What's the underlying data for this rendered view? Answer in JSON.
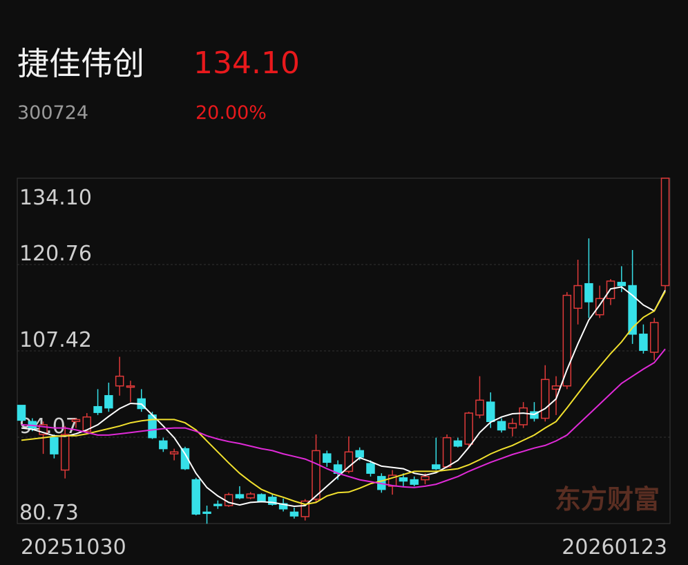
{
  "header": {
    "name": "捷佳伟创",
    "price": "134.10",
    "code": "300724",
    "change": "20.00%"
  },
  "watermark": "东方财富",
  "chart_data": {
    "type": "candlestick",
    "x": [
      "20251030",
      null,
      null,
      null,
      null,
      null,
      null,
      null,
      null,
      null,
      null,
      null,
      null,
      null,
      null,
      null,
      null,
      null,
      null,
      null,
      null,
      null,
      null,
      null,
      null,
      null,
      null,
      null,
      null,
      null,
      null,
      null,
      null,
      null,
      null,
      null,
      null,
      null,
      null,
      null,
      null,
      null,
      null,
      null,
      null,
      null,
      null,
      null,
      null,
      null,
      null,
      null,
      null,
      null,
      null,
      null,
      null,
      null,
      null,
      "20260123"
    ],
    "open": [
      99.0,
      96.5,
      94.5,
      94.0,
      89.0,
      96.5,
      95.0,
      98.8,
      100.5,
      102.0,
      101.8,
      100.0,
      97.5,
      93.5,
      91.5,
      92.3,
      87.5,
      82.5,
      83.7,
      83.5,
      85.2,
      84.7,
      85.2,
      84.8,
      83.8,
      82.5,
      81.8,
      84.5,
      91.5,
      89.8,
      88.8,
      92.0,
      90.0,
      88.0,
      86.5,
      87.8,
      87.5,
      87.5,
      89.8,
      89.5,
      93.5,
      93.0,
      97.5,
      99.5,
      96.5,
      95.5,
      96.0,
      98.0,
      97.0,
      101.5,
      102.0,
      114.0,
      117.8,
      113.0,
      115.5,
      118.0,
      117.5,
      110.0,
      107.2,
      117.5
    ],
    "high": [
      99.0,
      97.0,
      96.5,
      94.5,
      95.8,
      97.0,
      97.8,
      101.5,
      102.5,
      106.5,
      102.8,
      101.5,
      98.0,
      94.0,
      92.3,
      92.6,
      87.8,
      83.5,
      84.3,
      85.5,
      86.5,
      85.6,
      85.4,
      85.3,
      84.6,
      83.2,
      84.5,
      94.5,
      92.0,
      90.5,
      94.2,
      92.5,
      90.5,
      88.5,
      89.0,
      88.5,
      88.0,
      88.5,
      94.0,
      94.5,
      94.0,
      98.0,
      103.5,
      101.0,
      97.0,
      97.0,
      99.5,
      99.5,
      105.2,
      103.5,
      116.5,
      121.5,
      124.8,
      117.5,
      118.5,
      120.5,
      123.0,
      111.5,
      112.5,
      134.1
    ],
    "low": [
      96.5,
      95.0,
      91.5,
      90.8,
      87.7,
      95.5,
      94.5,
      97.5,
      98.0,
      100.5,
      99.5,
      98.0,
      93.8,
      91.8,
      90.5,
      89.0,
      82.0,
      80.7,
      83.0,
      83.3,
      84.5,
      84.5,
      84.0,
      83.5,
      82.6,
      81.5,
      81.2,
      84.0,
      89.5,
      87.5,
      88.5,
      90.5,
      88.0,
      85.5,
      85.2,
      86.5,
      86.5,
      86.8,
      89.0,
      89.3,
      92.5,
      92.5,
      97.0,
      95.5,
      94.8,
      94.2,
      95.5,
      96.5,
      96.5,
      97.5,
      101.5,
      111.5,
      112.5,
      112.5,
      114.5,
      116.5,
      108.5,
      107.0,
      106.0,
      116.8
    ],
    "close": [
      96.7,
      95.5,
      96.0,
      91.5,
      94.5,
      96.8,
      97.2,
      97.9,
      98.6,
      103.5,
      102.0,
      98.5,
      94.0,
      92.3,
      91.8,
      89.2,
      82.2,
      82.3,
      83.5,
      85.2,
      84.7,
      85.3,
      84.2,
      83.7,
      83.0,
      81.9,
      84.2,
      92.0,
      90.2,
      88.5,
      91.8,
      91.0,
      88.5,
      86.0,
      88.2,
      87.3,
      86.8,
      88.0,
      89.2,
      94.0,
      92.7,
      97.8,
      99.8,
      96.5,
      95.2,
      96.2,
      98.6,
      97.0,
      103.0,
      102.0,
      116.0,
      117.5,
      115.0,
      115.5,
      118.2,
      117.5,
      110.0,
      107.5,
      111.8,
      134.1
    ],
    "up_color": "#e03a3a",
    "down_color": "#36e0e8",
    "lines": [
      {
        "color": "#ffffff",
        "values": [
          95.5,
          95.3,
          94.8,
          94.3,
          94.2,
          94.6,
          95.2,
          96.0,
          97.3,
          98.5,
          99.3,
          99.2,
          97.5,
          95.8,
          94.0,
          91.5,
          88.5,
          86.3,
          85.0,
          84.0,
          83.6,
          84.0,
          84.1,
          84.0,
          83.7,
          83.4,
          83.5,
          85.0,
          86.5,
          88.0,
          89.5,
          90.9,
          90.3,
          89.6,
          89.4,
          89.2,
          88.5,
          88.2,
          88.6,
          89.5,
          90.5,
          92.5,
          94.8,
          96.4,
          97.2,
          97.7,
          97.8,
          97.6,
          98.5,
          100.0,
          104.5,
          108.5,
          112.2,
          114.5,
          117.0,
          117.3,
          116.0,
          114.5,
          113.6,
          116.8
        ]
      },
      {
        "color": "#f2e12e",
        "values": [
          93.6,
          93.8,
          94.0,
          94.2,
          94.3,
          94.3,
          94.6,
          95.0,
          95.4,
          95.8,
          96.3,
          96.6,
          96.8,
          96.8,
          96.8,
          96.3,
          95.2,
          93.5,
          91.8,
          90.1,
          88.5,
          87.2,
          86.0,
          85.3,
          84.8,
          84.2,
          83.7,
          84.0,
          85.0,
          85.5,
          85.6,
          86.2,
          86.9,
          87.3,
          87.8,
          88.3,
          88.8,
          88.8,
          88.8,
          89.0,
          89.2,
          89.8,
          90.6,
          91.5,
          92.2,
          92.8,
          93.6,
          94.4,
          95.5,
          96.5,
          98.6,
          100.8,
          103.0,
          105.0,
          107.0,
          108.8,
          111.0,
          112.6,
          113.6,
          116.6
        ]
      },
      {
        "color": "#e02ad8",
        "values": [
          96.0,
          95.9,
          95.7,
          95.5,
          95.5,
          95.2,
          94.8,
          94.4,
          94.4,
          94.6,
          94.8,
          95.0,
          95.2,
          95.4,
          95.5,
          95.5,
          95.0,
          94.3,
          93.8,
          93.4,
          93.1,
          92.7,
          92.3,
          92.0,
          91.5,
          91.1,
          90.7,
          90.0,
          89.2,
          88.5,
          88.0,
          87.5,
          87.2,
          86.9,
          86.6,
          86.4,
          86.3,
          86.5,
          86.8,
          87.4,
          88.0,
          88.8,
          89.5,
          90.2,
          90.8,
          91.4,
          91.9,
          92.4,
          92.8,
          93.5,
          94.4,
          96.0,
          97.6,
          99.2,
          100.8,
          102.4,
          103.5,
          104.6,
          105.6,
          107.7
        ]
      }
    ],
    "ylim": [
      80.73,
      134.1
    ],
    "yticks": [
      {
        "value": 134.1,
        "label": "134.10"
      },
      120.76,
      107.42,
      94.07,
      80.73
    ],
    "grid": true
  }
}
